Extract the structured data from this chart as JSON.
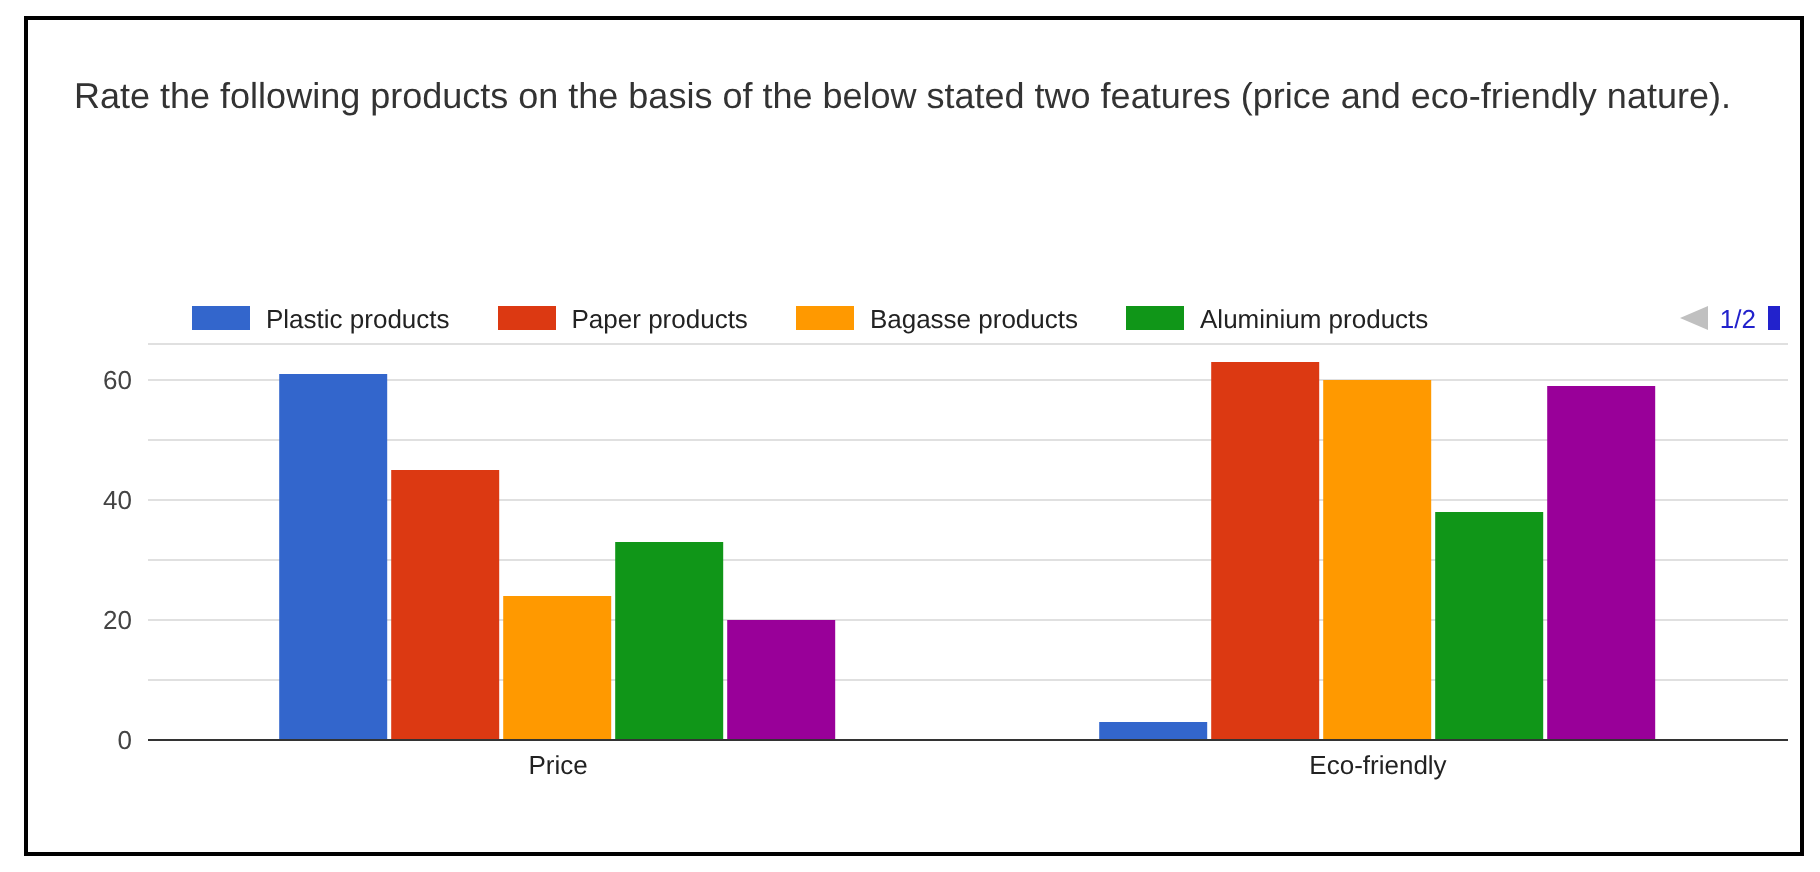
{
  "chart_data": {
    "type": "bar",
    "title": "Rate the following products on the basis of the below stated two features (price and eco-friendly nature).",
    "categories": [
      "Price",
      "Eco-friendly"
    ],
    "series": [
      {
        "name": "Plastic products",
        "color": "#3366cc",
        "values": [
          61,
          3
        ]
      },
      {
        "name": "Paper products",
        "color": "#dc3912",
        "values": [
          45,
          63
        ]
      },
      {
        "name": "Bagasse products",
        "color": "#ff9900",
        "values": [
          24,
          60
        ]
      },
      {
        "name": "Aluminium products",
        "color": "#109618",
        "values": [
          33,
          38
        ]
      },
      {
        "color": "#990099",
        "values": [
          20,
          59
        ]
      }
    ],
    "ylim": [
      0,
      66
    ],
    "yticks": [
      0,
      {
        "value": 10,
        "label": null
      },
      20,
      {
        "value": 30,
        "label": null
      },
      40,
      {
        "value": 50,
        "label": null
      },
      60
    ],
    "grid": "y",
    "legend": "top",
    "annotations": [
      "1/2"
    ]
  }
}
